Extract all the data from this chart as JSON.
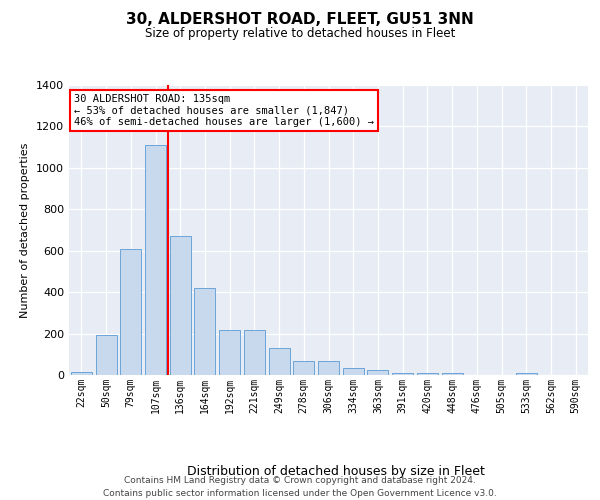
{
  "title": "30, ALDERSHOT ROAD, FLEET, GU51 3NN",
  "subtitle": "Size of property relative to detached houses in Fleet",
  "xlabel": "Distribution of detached houses by size in Fleet",
  "ylabel": "Number of detached properties",
  "categories": [
    "22sqm",
    "50sqm",
    "79sqm",
    "107sqm",
    "136sqm",
    "164sqm",
    "192sqm",
    "221sqm",
    "249sqm",
    "278sqm",
    "306sqm",
    "334sqm",
    "363sqm",
    "391sqm",
    "420sqm",
    "448sqm",
    "476sqm",
    "505sqm",
    "533sqm",
    "562sqm",
    "590sqm"
  ],
  "values": [
    15,
    195,
    608,
    1110,
    670,
    420,
    215,
    215,
    130,
    70,
    70,
    33,
    25,
    12,
    12,
    8,
    2,
    2,
    12,
    2,
    2
  ],
  "bar_color": "#c8d9ee",
  "bar_edge_color": "#5b9bd5",
  "red_line_index": 4,
  "annotation_text": "30 ALDERSHOT ROAD: 135sqm\n← 53% of detached houses are smaller (1,847)\n46% of semi-detached houses are larger (1,600) →",
  "ylim": [
    0,
    1400
  ],
  "yticks": [
    0,
    200,
    400,
    600,
    800,
    1000,
    1200,
    1400
  ],
  "bg_color": "#e8edf5",
  "grid_color": "#ffffff",
  "footer": "Contains HM Land Registry data © Crown copyright and database right 2024.\nContains public sector information licensed under the Open Government Licence v3.0."
}
